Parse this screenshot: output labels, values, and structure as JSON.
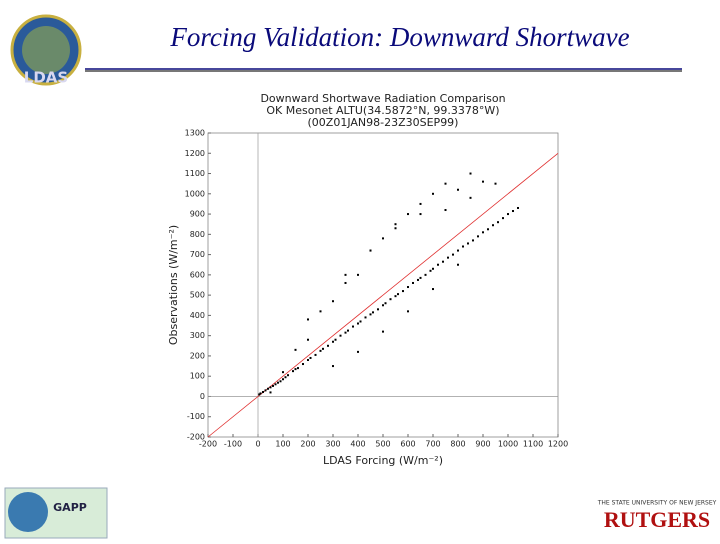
{
  "slide_title": "Forcing Validation: Downward Shortwave",
  "logos": {
    "left_top": "LDAS",
    "left_bottom": "GAPP",
    "right_bottom": "RUTGERS",
    "right_bottom_caption": "THE STATE UNIVERSITY OF NEW JERSEY"
  },
  "chart_data": {
    "type": "scatter",
    "title": [
      "Downward Shortwave Radiation Comparison",
      "OK Mesonet ALTU(34.5872°N, 99.3378°W)",
      "(00Z01JAN98-23Z30SEP99)"
    ],
    "x_label": "LDAS Forcing (W/m⁻²)",
    "y_label": "Observations (W/m⁻²)",
    "color": "#000000",
    "reference_color": "#e03030",
    "xlim": [
      -200,
      1200
    ],
    "xticks": [
      -200,
      -100,
      0,
      100,
      200,
      300,
      400,
      500,
      600,
      700,
      800,
      900,
      1000,
      1100,
      1200
    ],
    "ylim": [
      -200,
      1300
    ],
    "yticks": [
      -200,
      -100,
      0,
      100,
      200,
      300,
      400,
      500,
      600,
      700,
      800,
      900,
      1000,
      1100,
      1200,
      1300
    ],
    "grid": false,
    "x": [
      5,
      10,
      20,
      30,
      40,
      50,
      60,
      70,
      80,
      90,
      100,
      110,
      120,
      140,
      150,
      160,
      180,
      200,
      210,
      230,
      250,
      260,
      280,
      300,
      310,
      330,
      350,
      360,
      380,
      400,
      410,
      430,
      450,
      460,
      480,
      500,
      510,
      530,
      550,
      560,
      580,
      600,
      620,
      640,
      650,
      670,
      690,
      700,
      720,
      740,
      760,
      780,
      800,
      820,
      840,
      860,
      880,
      900,
      920,
      940,
      960,
      980,
      1000,
      1020,
      1040,
      50,
      100,
      150,
      200,
      250,
      300,
      350,
      400,
      450,
      500,
      550,
      600,
      650,
      700,
      750,
      800,
      850,
      900,
      300,
      400,
      500,
      600,
      700,
      800,
      200,
      350,
      450,
      550,
      650,
      750,
      850,
      950
    ],
    "y": [
      10,
      15,
      22,
      30,
      38,
      45,
      52,
      60,
      68,
      75,
      85,
      95,
      105,
      125,
      135,
      140,
      160,
      180,
      190,
      205,
      225,
      235,
      250,
      270,
      280,
      300,
      315,
      325,
      345,
      360,
      370,
      390,
      405,
      415,
      430,
      450,
      460,
      480,
      495,
      505,
      520,
      540,
      560,
      575,
      585,
      600,
      620,
      630,
      650,
      665,
      685,
      700,
      720,
      740,
      755,
      770,
      790,
      810,
      825,
      845,
      860,
      880,
      900,
      915,
      930,
      20,
      120,
      230,
      280,
      420,
      470,
      560,
      600,
      720,
      780,
      830,
      900,
      950,
      1000,
      1050,
      1020,
      1100,
      1060,
      150,
      220,
      320,
      420,
      530,
      650,
      380,
      600,
      720,
      850,
      900,
      920,
      980,
      1050
    ]
  }
}
